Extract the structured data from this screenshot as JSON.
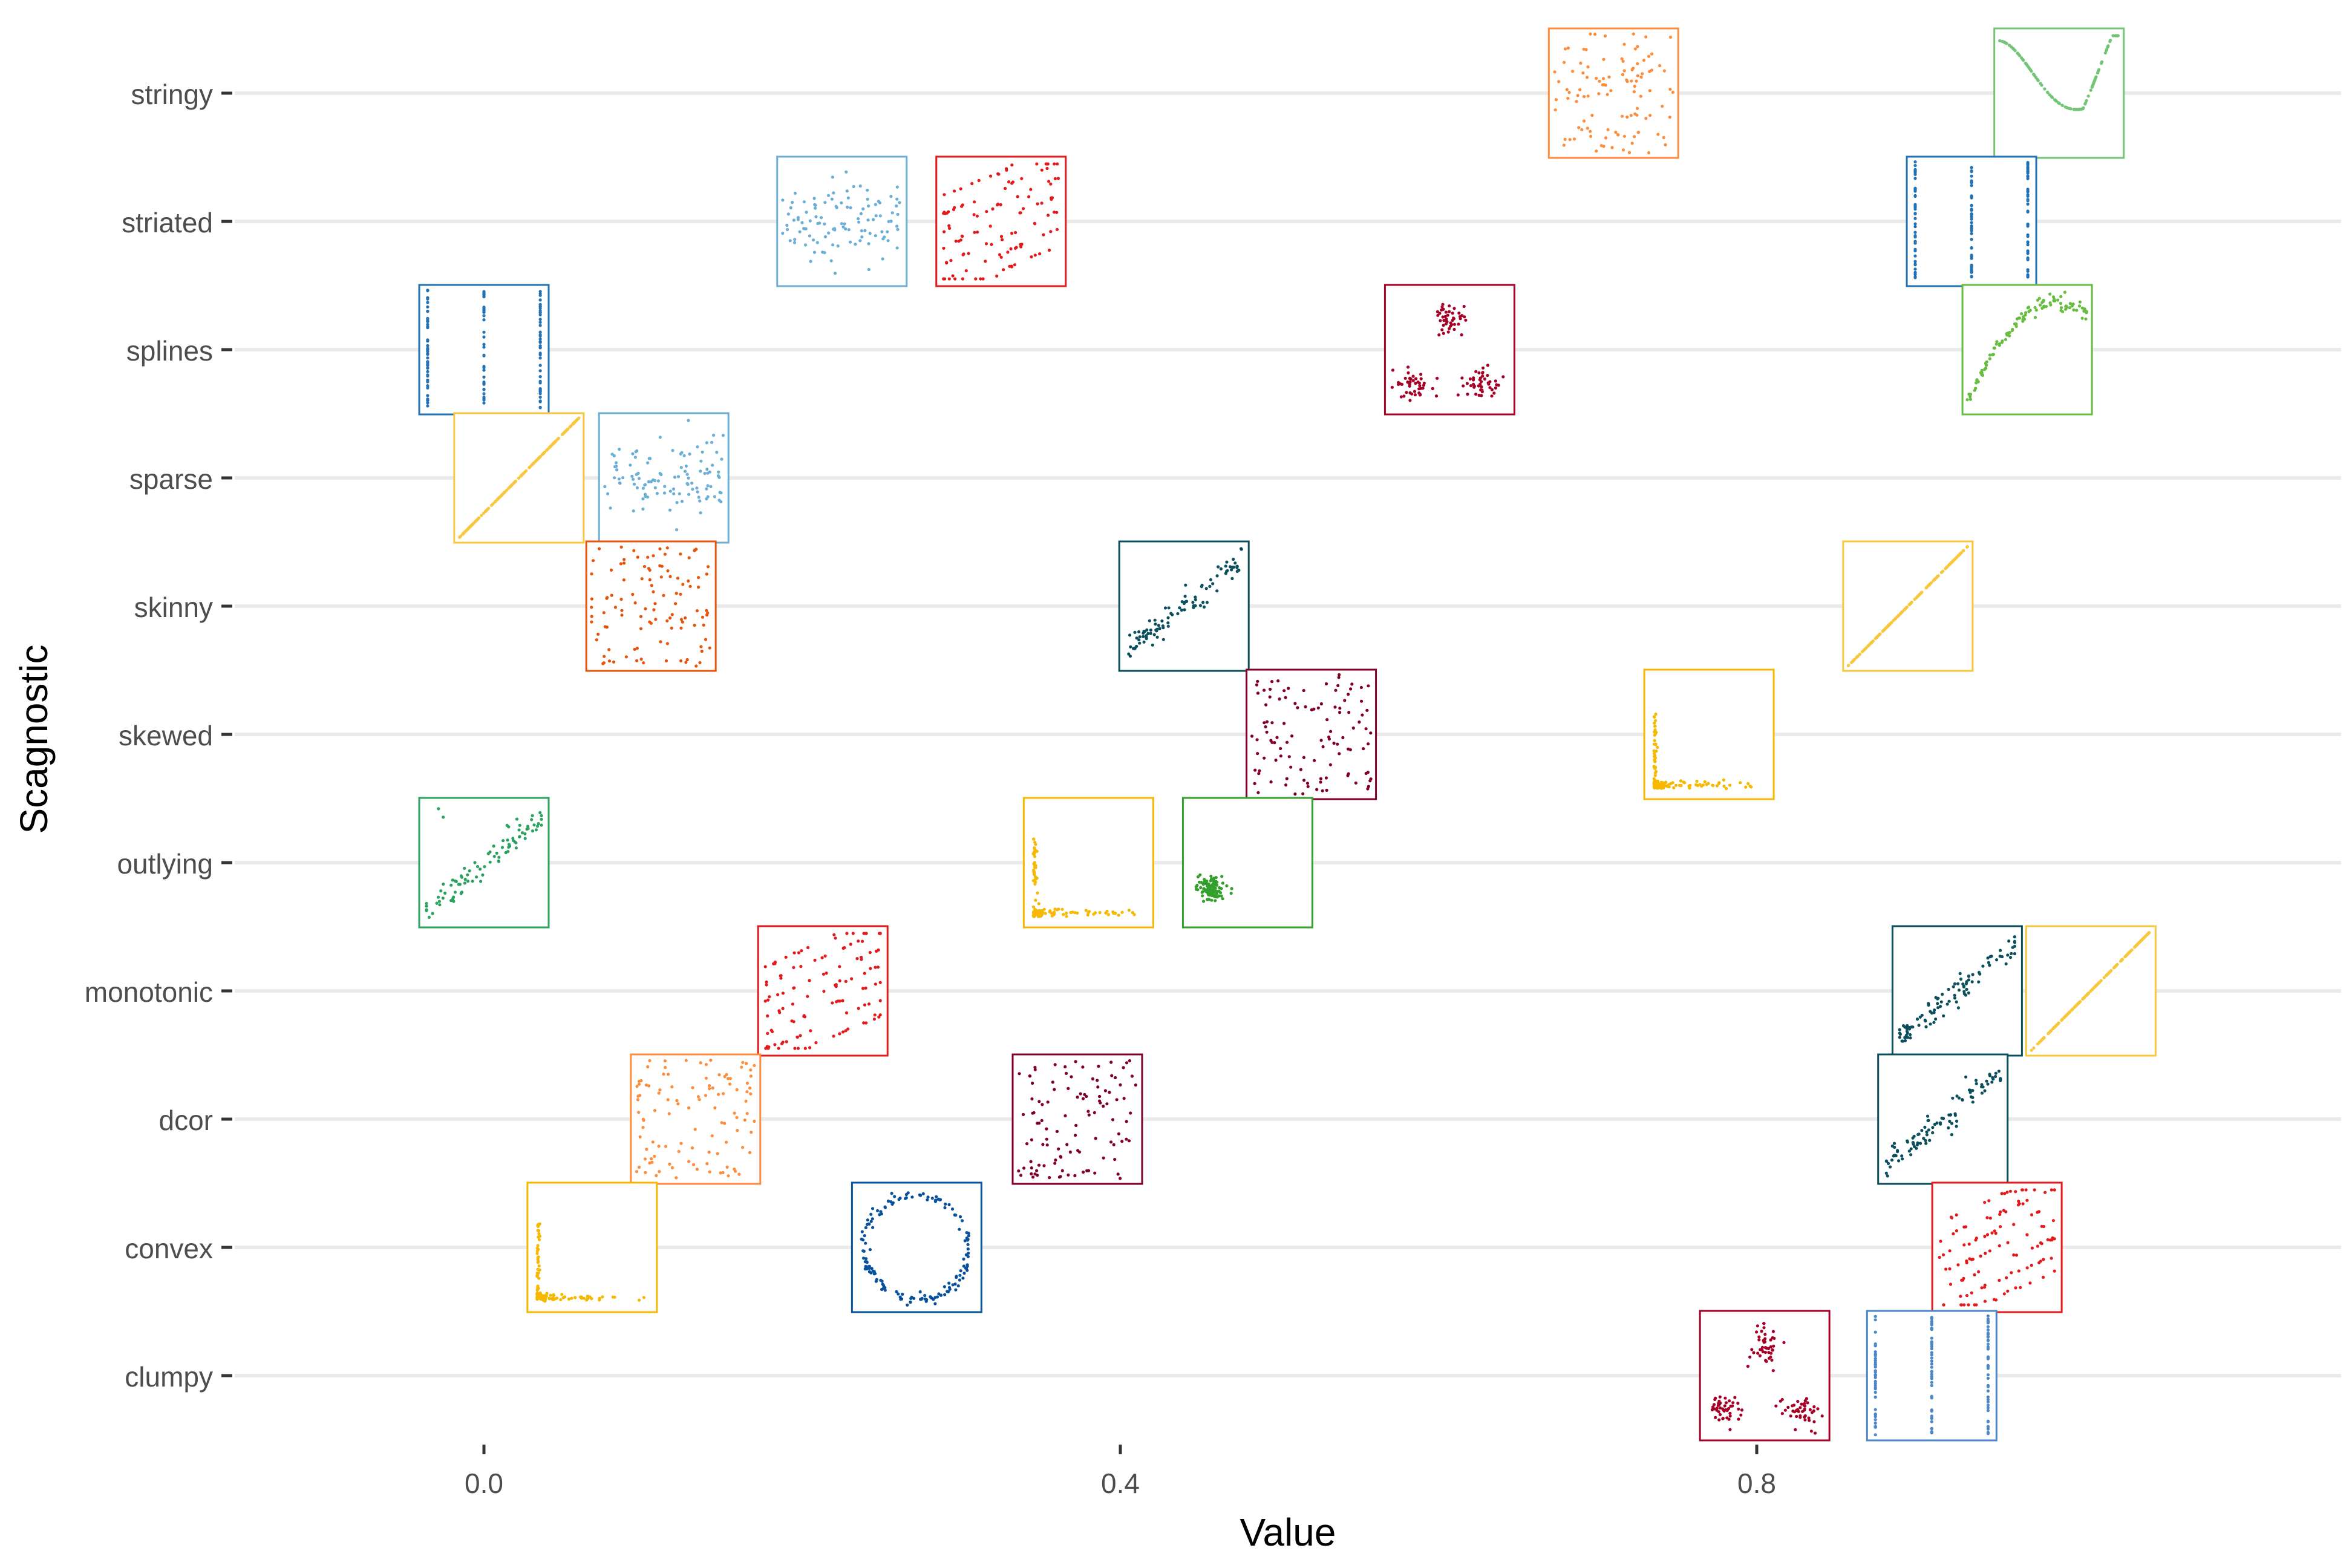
{
  "chart_data": {
    "type": "scatter",
    "subtype": "thumbnail-scatterplot-glyphs",
    "xlabel": "Value",
    "ylabel": "Scagnostic",
    "xlim": [
      -0.16,
      1.16
    ],
    "x_ticks": [
      {
        "value": 0.0,
        "label": "0.0"
      },
      {
        "value": 0.4,
        "label": "0.4"
      },
      {
        "value": 0.8,
        "label": "0.8"
      }
    ],
    "categories": [
      "clumpy",
      "convex",
      "dcor",
      "monotonic",
      "outlying",
      "skewed",
      "skinny",
      "sparse",
      "splines",
      "striated",
      "stringy"
    ],
    "grid": {
      "major_y": true,
      "major_x": false
    },
    "background": "#ffffff",
    "colors": {
      "grid": "#ebebeb",
      "tick_text": "#4d4d4d",
      "axis_title": "#000000"
    },
    "points": [
      {
        "scagnostic": "stringy",
        "value": 0.71,
        "pattern": "scatter",
        "color": "#fd8d3c"
      },
      {
        "scagnostic": "stringy",
        "value": 0.99,
        "pattern": "curve",
        "color": "#74c476"
      },
      {
        "scagnostic": "striated",
        "value": 0.225,
        "pattern": "noise",
        "color": "#6baed6"
      },
      {
        "scagnostic": "striated",
        "value": 0.325,
        "pattern": "stripes",
        "color": "#e31a1c"
      },
      {
        "scagnostic": "striated",
        "value": 0.935,
        "pattern": "vlines",
        "color": "#2171b5"
      },
      {
        "scagnostic": "splines",
        "value": 0.0,
        "pattern": "vlines",
        "color": "#2171b5"
      },
      {
        "scagnostic": "splines",
        "value": 0.607,
        "pattern": "clusters",
        "color": "#a50026"
      },
      {
        "scagnostic": "splines",
        "value": 0.97,
        "pattern": "parabola",
        "color": "#66bd3f"
      },
      {
        "scagnostic": "sparse",
        "value": 0.022,
        "pattern": "diagonal",
        "color": "#f9c73c"
      },
      {
        "scagnostic": "sparse",
        "value": 0.113,
        "pattern": "noise",
        "color": "#6baed6"
      },
      {
        "scagnostic": "skinny",
        "value": 0.105,
        "pattern": "scatter",
        "color": "#e6550d"
      },
      {
        "scagnostic": "skinny",
        "value": 0.44,
        "pattern": "linear",
        "color": "#0b4f5c"
      },
      {
        "scagnostic": "skinny",
        "value": 0.895,
        "pattern": "diagonal",
        "color": "#f9c73c"
      },
      {
        "scagnostic": "skewed",
        "value": 0.52,
        "pattern": "scatter",
        "color": "#800026"
      },
      {
        "scagnostic": "skewed",
        "value": 0.77,
        "pattern": "lshape",
        "color": "#f6b800"
      },
      {
        "scagnostic": "outlying",
        "value": 0.0,
        "pattern": "linear-outlier",
        "color": "#2ca25f"
      },
      {
        "scagnostic": "outlying",
        "value": 0.38,
        "pattern": "lshape",
        "color": "#f6b800"
      },
      {
        "scagnostic": "outlying",
        "value": 0.48,
        "pattern": "blob",
        "color": "#33a02c"
      },
      {
        "scagnostic": "monotonic",
        "value": 0.213,
        "pattern": "stripes",
        "color": "#e31a1c"
      },
      {
        "scagnostic": "monotonic",
        "value": 0.926,
        "pattern": "linear",
        "color": "#0b4f5c"
      },
      {
        "scagnostic": "monotonic",
        "value": 1.01,
        "pattern": "diagonal",
        "color": "#f9c73c"
      },
      {
        "scagnostic": "dcor",
        "value": 0.133,
        "pattern": "scatter",
        "color": "#fd8d3c"
      },
      {
        "scagnostic": "dcor",
        "value": 0.373,
        "pattern": "scatter",
        "color": "#800026"
      },
      {
        "scagnostic": "dcor",
        "value": 0.917,
        "pattern": "linear",
        "color": "#0b4f5c"
      },
      {
        "scagnostic": "convex",
        "value": 0.068,
        "pattern": "lshape",
        "color": "#f6b800"
      },
      {
        "scagnostic": "convex",
        "value": 0.272,
        "pattern": "ring",
        "color": "#08519c"
      },
      {
        "scagnostic": "convex",
        "value": 0.951,
        "pattern": "stripes",
        "color": "#e31a1c"
      },
      {
        "scagnostic": "clumpy",
        "value": 0.805,
        "pattern": "clusters",
        "color": "#a50026"
      },
      {
        "scagnostic": "clumpy",
        "value": 0.91,
        "pattern": "vlines",
        "color": "#4a86c8"
      }
    ]
  }
}
